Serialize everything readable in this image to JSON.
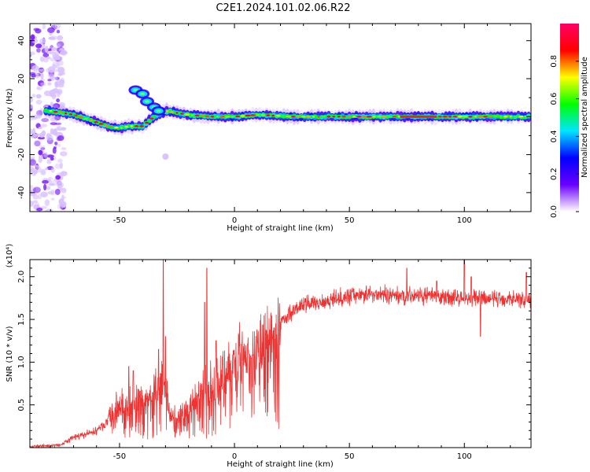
{
  "title": "C2E1.2024.101.02.06.R22",
  "chart_data": [
    {
      "type": "heatmap",
      "xlabel": "Height of straight line (km)",
      "ylabel": "Frequency (Hz)",
      "xlim": [
        -89,
        129
      ],
      "ylim": [
        -50,
        49
      ],
      "xticks": [
        -50,
        0,
        50,
        100
      ],
      "yticks": [
        -40,
        -20,
        0,
        20,
        40
      ],
      "colorbar": {
        "label": "Normalized spectral amplitude",
        "range": [
          0,
          1
        ],
        "ticks": [
          "0.0",
          "0.2",
          "0.4",
          "0.6",
          "0.8"
        ],
        "colormap": [
          "#ffffff",
          "#6a00ff",
          "#0000ff",
          "#00e5ff",
          "#00ff00",
          "#ffff00",
          "#ff0000",
          "#ff0066"
        ]
      },
      "ridge": [
        {
          "x": -80,
          "y": 3
        },
        {
          "x": -75,
          "y": 2
        },
        {
          "x": -70,
          "y": 1
        },
        {
          "x": -65,
          "y": -1
        },
        {
          "x": -60,
          "y": -3
        },
        {
          "x": -55,
          "y": -5
        },
        {
          "x": -50,
          "y": -6
        },
        {
          "x": -45,
          "y": -5
        },
        {
          "x": -40,
          "y": -5
        },
        {
          "x": -35,
          "y": 0
        },
        {
          "x": -30,
          "y": 3
        },
        {
          "x": -25,
          "y": 2
        },
        {
          "x": -20,
          "y": 1
        },
        {
          "x": -10,
          "y": 0
        },
        {
          "x": 0,
          "y": 0
        },
        {
          "x": 10,
          "y": 1
        },
        {
          "x": 25,
          "y": 0
        },
        {
          "x": 50,
          "y": 0
        },
        {
          "x": 75,
          "y": 0
        },
        {
          "x": 100,
          "y": 0
        },
        {
          "x": 129,
          "y": 0
        }
      ],
      "secondary": [
        {
          "x": -43,
          "y": 14
        },
        {
          "x": -40,
          "y": 12
        },
        {
          "x": -38,
          "y": 8
        },
        {
          "x": -35,
          "y": 5
        },
        {
          "x": -33,
          "y": 3
        },
        {
          "x": -30,
          "y": -21
        }
      ]
    },
    {
      "type": "line",
      "xlabel": "Height of straight line (km)",
      "ylabel": "SNR (10 * v/v)",
      "yscale_note": "(x10⁴)",
      "xlim": [
        -89,
        129
      ],
      "ylim": [
        0,
        2.2
      ],
      "xticks": [
        -50,
        0,
        50,
        100
      ],
      "yticks": [
        0.5,
        1.0,
        1.5,
        2.0
      ],
      "color": "#ee3333",
      "envelope": [
        {
          "x": -89,
          "y": 0.01
        },
        {
          "x": -80,
          "y": 0.02
        },
        {
          "x": -75,
          "y": 0.04
        },
        {
          "x": -70,
          "y": 0.12
        },
        {
          "x": -65,
          "y": 0.15
        },
        {
          "x": -60,
          "y": 0.2
        },
        {
          "x": -55,
          "y": 0.3
        },
        {
          "x": -50,
          "y": 0.45
        },
        {
          "x": -45,
          "y": 0.5
        },
        {
          "x": -40,
          "y": 0.55
        },
        {
          "x": -35,
          "y": 0.6
        },
        {
          "x": -31,
          "y": 0.8
        },
        {
          "x": -28,
          "y": 0.4
        },
        {
          "x": -25,
          "y": 0.3
        },
        {
          "x": -20,
          "y": 0.4
        },
        {
          "x": -15,
          "y": 0.6
        },
        {
          "x": -10,
          "y": 0.75
        },
        {
          "x": -5,
          "y": 0.85
        },
        {
          "x": 0,
          "y": 1.0
        },
        {
          "x": 5,
          "y": 1.1
        },
        {
          "x": 10,
          "y": 1.15
        },
        {
          "x": 15,
          "y": 1.3
        },
        {
          "x": 20,
          "y": 1.45
        },
        {
          "x": 25,
          "y": 1.6
        },
        {
          "x": 30,
          "y": 1.67
        },
        {
          "x": 40,
          "y": 1.72
        },
        {
          "x": 50,
          "y": 1.78
        },
        {
          "x": 60,
          "y": 1.8
        },
        {
          "x": 70,
          "y": 1.78
        },
        {
          "x": 80,
          "y": 1.78
        },
        {
          "x": 90,
          "y": 1.76
        },
        {
          "x": 100,
          "y": 1.75
        },
        {
          "x": 110,
          "y": 1.74
        },
        {
          "x": 120,
          "y": 1.75
        },
        {
          "x": 129,
          "y": 1.72
        }
      ],
      "spikes": [
        {
          "x": -31,
          "y": 2.2
        },
        {
          "x": -30,
          "y": 1.3
        },
        {
          "x": -33,
          "y": 1.15
        },
        {
          "x": -12,
          "y": 2.1
        },
        {
          "x": -13,
          "y": 1.7
        },
        {
          "x": -8,
          "y": 1.25
        },
        {
          "x": -44,
          "y": 0.9
        },
        {
          "x": -46,
          "y": 0.95
        },
        {
          "x": 100,
          "y": 2.2
        },
        {
          "x": 75,
          "y": 2.1
        },
        {
          "x": 127,
          "y": 2.05
        },
        {
          "x": 103,
          "y": 2.0
        },
        {
          "x": 107,
          "y": 1.3
        },
        {
          "x": 88,
          "y": 1.95
        }
      ]
    }
  ]
}
